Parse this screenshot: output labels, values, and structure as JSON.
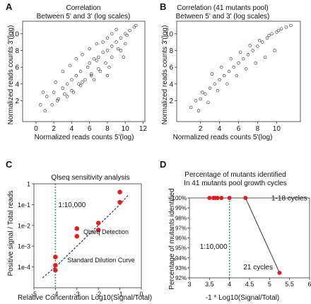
{
  "panels": {
    "A": "A",
    "B": "B",
    "C": "C",
    "D": "D"
  },
  "chart_data": [
    {
      "panel": "A",
      "type": "scatter",
      "title": "Correlation",
      "subtitle": "Between 5' and 3' (log scales)",
      "xlabel": "Normalized reads counts 5'(log)",
      "ylabel": "Normalized reads counts 3'(log)",
      "xlim": [
        -1.5,
        12.2
      ],
      "ylim": [
        -0.5,
        11.5
      ],
      "xticks": [
        0,
        2,
        4,
        6,
        8,
        10,
        12
      ],
      "yticks": [
        2,
        4,
        6,
        8,
        10
      ],
      "x": [
        0.5,
        1.2,
        2.0,
        2.4,
        3.0,
        3.5,
        4.0,
        4.2,
        4.5,
        5.0,
        5.2,
        5.8,
        6.0,
        6.2,
        6.5,
        6.8,
        7.0,
        7.2,
        7.5,
        8.0,
        8.2,
        8.5,
        9.0,
        9.2,
        9.5,
        10.0,
        10.2,
        10.5,
        11.0,
        11.2,
        3.0,
        3.8,
        4.5,
        5.2,
        6.0,
        6.8,
        7.5,
        8.0,
        8.5,
        9.0,
        1.0,
        1.8,
        2.5,
        3.2,
        4.0,
        4.8,
        5.5,
        6.2,
        7.0,
        7.8,
        8.5,
        9.5,
        10.0,
        0.8,
        2.2,
        3.5,
        5.0,
        6.5,
        8.0,
        9.8
      ],
      "y": [
        1.5,
        2.5,
        3.0,
        2.0,
        3.5,
        4.0,
        4.5,
        3.0,
        5.0,
        5.5,
        4.2,
        6.0,
        6.5,
        5.0,
        7.0,
        6.8,
        7.2,
        5.5,
        7.8,
        8.0,
        6.0,
        8.5,
        9.0,
        8.2,
        9.5,
        10.0,
        9.8,
        10.4,
        10.8,
        11.0,
        5.5,
        6.2,
        7.0,
        7.5,
        8.2,
        8.8,
        9.0,
        9.5,
        10.0,
        10.5,
        0.8,
        1.5,
        2.2,
        2.8,
        3.2,
        4.0,
        4.5,
        5.2,
        5.8,
        6.5,
        7.2,
        8.0,
        8.8,
        3.0,
        4.2,
        2.5,
        3.8,
        4.5,
        5.0,
        7.2
      ]
    },
    {
      "panel": "B",
      "type": "scatter",
      "title": "Correlation (41 mutants pool)",
      "subtitle": "Between 5' and 3' (log scales)",
      "xlabel": "Normalized reads counts 5'(log)",
      "ylabel": "Normalized reads counts 3'(log)",
      "xlim": [
        -0.5,
        12.5
      ],
      "ylim": [
        -0.5,
        11.5
      ],
      "xticks": [
        2,
        4,
        6,
        8,
        10
      ],
      "yticks": [
        2,
        4,
        6,
        8,
        10
      ],
      "x": [
        1.0,
        1.5,
        2.0,
        2.5,
        3.0,
        3.5,
        4.0,
        4.5,
        5.0,
        5.5,
        6.0,
        6.5,
        7.0,
        7.5,
        8.0,
        8.5,
        9.0,
        9.5,
        10.0,
        10.5,
        11.0,
        11.5,
        3.2,
        4.2,
        5.2,
        6.2,
        7.2,
        8.2,
        9.2,
        10.2,
        2.2,
        3.8,
        4.8,
        5.8,
        6.8,
        7.8,
        8.8,
        9.8,
        1.8,
        2.8
      ],
      "y": [
        1.2,
        2.0,
        2.2,
        2.8,
        3.5,
        4.0,
        4.5,
        5.0,
        5.5,
        6.0,
        6.5,
        7.0,
        7.5,
        8.0,
        8.5,
        9.0,
        9.5,
        10.0,
        10.2,
        10.6,
        10.8,
        11.0,
        5.2,
        6.0,
        7.0,
        7.8,
        8.6,
        9.2,
        9.8,
        10.4,
        3.0,
        3.2,
        4.0,
        5.0,
        5.8,
        6.5,
        7.2,
        8.0,
        0.8,
        1.8
      ]
    },
    {
      "panel": "C",
      "type": "scatter",
      "title": "Qlseq sensitivity analysis",
      "xlabel": "Relative Concentration Log10(Signal/Total)",
      "ylabel": "Positive signal / Total reads",
      "xlim": [
        -5,
        0
      ],
      "ylim_log10": [
        -5,
        0
      ],
      "xticks": [
        "-5",
        "-4",
        "-3",
        "-2",
        "-1",
        "0"
      ],
      "yticks": [
        "1",
        "1e-1",
        "1e-2",
        "1e-3",
        "1e-4"
      ],
      "vline_x": -4,
      "vline_label": "1:10,000",
      "series": [
        {
          "name": "Qlseq Detection",
          "color": "#e02020",
          "x": [
            -4,
            -4,
            -4,
            -3,
            -3,
            -2,
            -2,
            -1,
            -1
          ],
          "y": [
            0.0003,
            0.00012,
            7e-05,
            0.007,
            0.003,
            0.013,
            0.006,
            0.4,
            0.13
          ]
        },
        {
          "name": "Standard Dilution Curve",
          "color": "#2a2a9a",
          "x": [
            -4.6,
            -4,
            -3,
            -2,
            -1,
            -0.6
          ],
          "y": [
            3e-05,
            0.0001,
            0.001,
            0.01,
            0.1,
            0.3
          ]
        }
      ]
    },
    {
      "panel": "D",
      "type": "line",
      "title": "Percentage of mutants identified",
      "subtitle": "In 41 mutants pool growth cycles",
      "xlabel": "-1 * Log10(Signal/Total)",
      "ylabel": "Percentage of mutants identified",
      "xlim": [
        3,
        6
      ],
      "ylim": [
        92,
        100
      ],
      "xticks": [
        "3",
        "3.5",
        "4",
        "4.5",
        "5",
        "5.5",
        "6"
      ],
      "yticks": [
        "100%",
        "99%",
        "98%",
        "97%",
        "96%",
        "95%",
        "94%",
        "93%",
        "92%"
      ],
      "vline_x": 4,
      "vline_label": "1:10,000",
      "x": [
        3.5,
        3.6,
        3.65,
        3.7,
        3.8,
        4.0,
        4.4,
        5.25
      ],
      "y": [
        100,
        100,
        100,
        100,
        100,
        100,
        100,
        92.5
      ],
      "annotations": [
        "1-18 cycles",
        "21 cycles"
      ],
      "color": "#e02020"
    }
  ]
}
